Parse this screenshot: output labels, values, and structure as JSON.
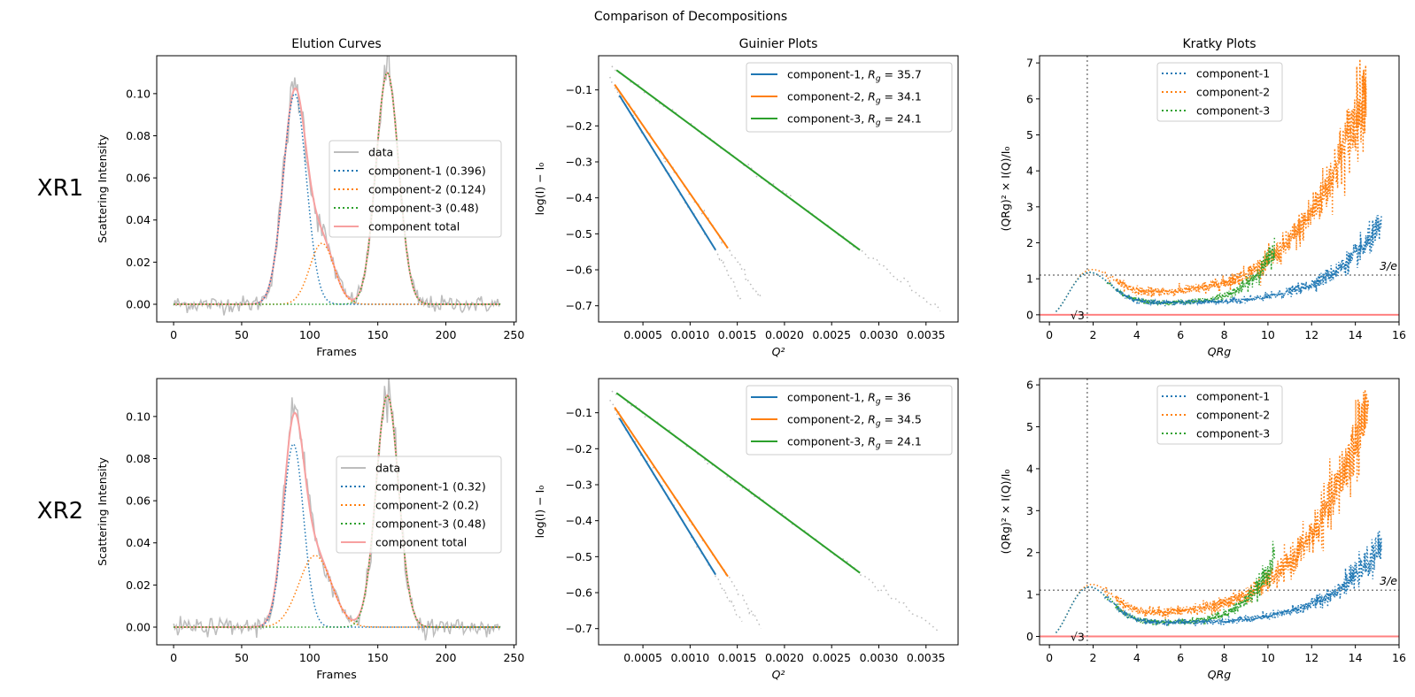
{
  "figure": {
    "suptitle": "Comparison of Decompositions",
    "column_titles": [
      "Elution Curves",
      "Guinier Plots",
      "Kratky Plots"
    ],
    "row_labels": [
      "XR1",
      "XR2"
    ]
  },
  "colors": {
    "c1": "#1f77b4",
    "c2": "#ff7f0e",
    "c3": "#2ca02c",
    "data": "#bdbdbd",
    "total": "#f7a0a0",
    "zero_line": "#ff8080",
    "ref_line": "#808080"
  },
  "chart_data": [
    {
      "type": "line",
      "panel": "elution",
      "row": "XR1",
      "title": "Elution Curves",
      "xlabel": "Frames",
      "ylabel": "Scattering Intensity",
      "xlim": [
        -12.4,
        251.7
      ],
      "ylim": [
        -0.0084,
        0.118
      ],
      "xticks": [
        "0",
        "50",
        "100",
        "150",
        "200",
        "250"
      ],
      "xtick_values": [
        0,
        50,
        100,
        150,
        200,
        250
      ],
      "yticks": [
        "0.00",
        "0.02",
        "0.04",
        "0.06",
        "0.08",
        "0.10"
      ],
      "ytick_values": [
        0,
        0.02,
        0.04,
        0.06,
        0.08,
        0.1
      ],
      "frames": [
        0,
        240
      ],
      "noise": 0.0025,
      "components": [
        {
          "name": "component-1",
          "proportion": "0.396",
          "center": 89,
          "height": 0.1,
          "sigma": 8.5
        },
        {
          "name": "component-2",
          "proportion": "0.124",
          "center": 109,
          "height": 0.029,
          "sigma": 9
        },
        {
          "name": "component-3",
          "proportion": "0.48",
          "center": 157,
          "height": 0.11,
          "sigma": 8.3
        }
      ],
      "legend": [
        "data",
        "component-1 (0.396)",
        "component-2 (0.124)",
        "component-3 (0.48)",
        "component total"
      ],
      "legend_placement": "center-right"
    },
    {
      "type": "line",
      "panel": "guinier",
      "row": "XR1",
      "title": "Guinier Plots",
      "xlabel": "Q²",
      "ylabel": "log(I) − I₀",
      "xlim": [
        3e-05,
        0.00384
      ],
      "ylim": [
        -0.745,
        -0.005
      ],
      "xticks": [
        "0.0005",
        "0.0010",
        "0.0015",
        "0.0020",
        "0.0025",
        "0.0030",
        "0.0035"
      ],
      "xtick_values": [
        0.0005,
        0.001,
        0.0015,
        0.002,
        0.0025,
        0.003,
        0.0035
      ],
      "yticks": [
        "−0.1",
        "−0.2",
        "−0.3",
        "−0.4",
        "−0.5",
        "−0.6",
        "−0.7"
      ],
      "ytick_values": [
        -0.1,
        -0.2,
        -0.3,
        -0.4,
        -0.5,
        -0.6,
        -0.7
      ],
      "fits": [
        {
          "name": "component-1",
          "rg": "35.7",
          "start": [
            0.00025,
            -0.115
          ],
          "end": [
            0.00127,
            -0.545
          ],
          "data_end": [
            0.00155,
            -0.68
          ]
        },
        {
          "name": "component-2",
          "rg": "34.1",
          "start": [
            0.0002,
            -0.085
          ],
          "end": [
            0.0014,
            -0.54
          ],
          "data_end": [
            0.00175,
            -0.685
          ]
        },
        {
          "name": "component-3",
          "rg": "24.1",
          "start": [
            0.00022,
            -0.045
          ],
          "end": [
            0.0028,
            -0.545
          ],
          "data_end": [
            0.00365,
            -0.71
          ]
        }
      ],
      "legend_placement": "upper-right"
    },
    {
      "type": "scatter",
      "panel": "kratky",
      "row": "XR1",
      "title": "Kratky Plots",
      "xlabel": "QRg",
      "ylabel": "(QRg)² × I(Q)/I₀",
      "xlim": [
        -0.45,
        16
      ],
      "ylim": [
        -0.2,
        7.2
      ],
      "xticks": [
        "0",
        "2",
        "4",
        "6",
        "8",
        "10",
        "12",
        "14",
        "16"
      ],
      "xtick_values": [
        0,
        2,
        4,
        6,
        8,
        10,
        12,
        14,
        16
      ],
      "yticks": [
        "0",
        "1",
        "2",
        "3",
        "4",
        "5",
        "6",
        "7"
      ],
      "ytick_values": [
        0,
        1,
        2,
        3,
        4,
        5,
        6,
        7
      ],
      "ref_labels": {
        "sqrt3": "√3",
        "three_over_e": "3/e"
      },
      "components": [
        {
          "name": "component-1",
          "xmax": 15.2,
          "base": 0.33,
          "amp": 2.0,
          "pow": 6,
          "xref": 15
        },
        {
          "name": "component-2",
          "xmax": 14.5,
          "base": 0.6,
          "amp": 5.4,
          "pow": 5,
          "xref": 14.3
        },
        {
          "name": "component-3",
          "xmax": 10.3,
          "base": 0.33,
          "amp": 1.2,
          "pow": 8,
          "xref": 10
        }
      ],
      "legend_placement": "upper-center"
    },
    {
      "type": "line",
      "panel": "elution",
      "row": "XR2",
      "title": "",
      "xlabel": "Frames",
      "ylabel": "Scattering Intensity",
      "xlim": [
        -12.4,
        251.7
      ],
      "ylim": [
        -0.0084,
        0.118
      ],
      "xticks": [
        "0",
        "50",
        "100",
        "150",
        "200",
        "250"
      ],
      "xtick_values": [
        0,
        50,
        100,
        150,
        200,
        250
      ],
      "yticks": [
        "0.00",
        "0.02",
        "0.04",
        "0.06",
        "0.08",
        "0.10"
      ],
      "ytick_values": [
        0,
        0.02,
        0.04,
        0.06,
        0.08,
        0.1
      ],
      "frames": [
        0,
        240
      ],
      "noise": 0.0025,
      "components": [
        {
          "name": "component-1",
          "proportion": "0.32",
          "center": 88,
          "height": 0.087,
          "sigma": 7.5
        },
        {
          "name": "component-2",
          "proportion": "0.2",
          "center": 104,
          "height": 0.034,
          "sigma": 12
        },
        {
          "name": "component-3",
          "proportion": "0.48",
          "center": 157,
          "height": 0.11,
          "sigma": 8.3
        }
      ],
      "legend": [
        "data",
        "component-1 (0.32)",
        "component-2 (0.2)",
        "component-3 (0.48)",
        "component total"
      ],
      "legend_placement": "center-right"
    },
    {
      "type": "line",
      "panel": "guinier",
      "row": "XR2",
      "title": "",
      "xlabel": "Q²",
      "ylabel": "log(I) − I₀",
      "xlim": [
        3e-05,
        0.00384
      ],
      "ylim": [
        -0.745,
        -0.005
      ],
      "xticks": [
        "0.0005",
        "0.0010",
        "0.0015",
        "0.0020",
        "0.0025",
        "0.0030",
        "0.0035"
      ],
      "xtick_values": [
        0.0005,
        0.001,
        0.0015,
        0.002,
        0.0025,
        0.003,
        0.0035
      ],
      "yticks": [
        "−0.1",
        "−0.2",
        "−0.3",
        "−0.4",
        "−0.5",
        "−0.6",
        "−0.7"
      ],
      "ytick_values": [
        -0.1,
        -0.2,
        -0.3,
        -0.4,
        -0.5,
        -0.6,
        -0.7
      ],
      "fits": [
        {
          "name": "component-1",
          "rg": "36",
          "start": [
            0.00025,
            -0.115
          ],
          "end": [
            0.00127,
            -0.55
          ],
          "data_end": [
            0.00155,
            -0.685
          ]
        },
        {
          "name": "component-2",
          "rg": "34.5",
          "start": [
            0.0002,
            -0.085
          ],
          "end": [
            0.0014,
            -0.555
          ],
          "data_end": [
            0.00175,
            -0.695
          ]
        },
        {
          "name": "component-3",
          "rg": "24.1",
          "start": [
            0.00022,
            -0.045
          ],
          "end": [
            0.0028,
            -0.545
          ],
          "data_end": [
            0.00365,
            -0.71
          ]
        }
      ],
      "legend_placement": "upper-right"
    },
    {
      "type": "scatter",
      "panel": "kratky",
      "row": "XR2",
      "title": "",
      "xlabel": "QRg",
      "ylabel": "(QRg)² × I(Q)/I₀",
      "xlim": [
        -0.45,
        16
      ],
      "ylim": [
        -0.2,
        6.15
      ],
      "xticks": [
        "0",
        "2",
        "4",
        "6",
        "8",
        "10",
        "12",
        "14",
        "16"
      ],
      "xtick_values": [
        0,
        2,
        4,
        6,
        8,
        10,
        12,
        14,
        16
      ],
      "yticks": [
        "0",
        "1",
        "2",
        "3",
        "4",
        "5",
        "6"
      ],
      "ytick_values": [
        0,
        1,
        2,
        3,
        4,
        5,
        6
      ],
      "ref_labels": {
        "sqrt3": "√3",
        "three_over_e": "3/e"
      },
      "components": [
        {
          "name": "component-1",
          "xmax": 15.2,
          "base": 0.33,
          "amp": 1.7,
          "pow": 6,
          "xref": 15
        },
        {
          "name": "component-2",
          "xmax": 14.6,
          "base": 0.55,
          "amp": 4.7,
          "pow": 5,
          "xref": 14.4
        },
        {
          "name": "component-3",
          "xmax": 10.3,
          "base": 0.33,
          "amp": 1.25,
          "pow": 8,
          "xref": 10
        }
      ],
      "legend_placement": "upper-center"
    }
  ]
}
